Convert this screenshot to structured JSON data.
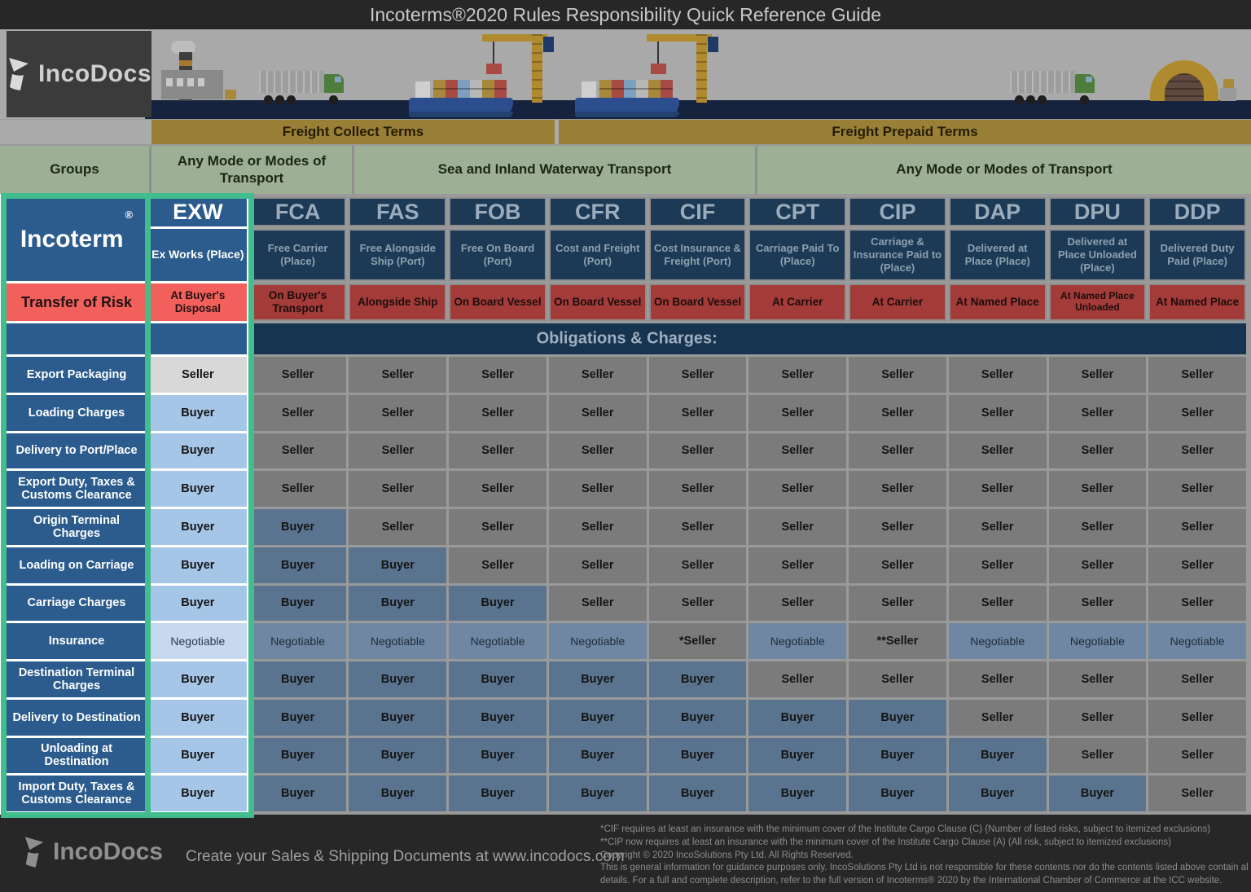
{
  "title": "Incoterms®2020 Rules Responsibility Quick Reference Guide",
  "brand": {
    "name": "IncoDocs",
    "tagline": "Create your Sales & Shipping Documents at www.incodocs.com"
  },
  "colors": {
    "highlight_green": "#42BE8E",
    "navy_bright": "#2B5C8D",
    "navy_dim": "#1C3A55",
    "red_bright": "#F2605C",
    "red_dim": "#A33B38",
    "seller_bright": "#D8D8D8",
    "seller_dim": "#7B7B7B",
    "buyer_bright": "#A6C6E8",
    "buyer_dim": "#5A7490",
    "negotiable_bright": "#C6D9EF",
    "negotiable_dim": "#6F87A2",
    "gold_bar": "#9A8036",
    "sage_group": "#9DB095"
  },
  "banner": {
    "icons": [
      "factory-icon",
      "cargo-truck-icon",
      "container-ship-icon",
      "crane-icon",
      "container-ship-icon",
      "crane-icon",
      "cargo-truck-icon",
      "warehouse-icon"
    ]
  },
  "freight": {
    "collect": "Freight Collect Terms",
    "prepaid": "Freight Prepaid Terms"
  },
  "groups": {
    "label": "Groups",
    "spans": [
      "Any Mode or Modes of Transport",
      "Sea and Inland Waterway Transport",
      "Any Mode or Modes of Transport"
    ]
  },
  "chart_data": {
    "type": "table",
    "title": "Incoterms®2020 Rules Responsibility Quick Reference Guide",
    "corner_label": "Incoterm",
    "corner_mark": "®",
    "risk_row_label": "Transfer of Risk",
    "obligations_header": "Obligations & Charges:",
    "highlighted_column": "EXW",
    "row_labels": [
      "Export Packaging",
      "Loading Charges",
      "Delivery to Port/Place",
      "Export Duty, Taxes & Customs Clearance",
      "Origin Terminal Charges",
      "Loading on Carriage",
      "Carriage Charges",
      "Insurance",
      "Destination Terminal Charges",
      "Delivery to Destination",
      "Unloading at Destination",
      "Import Duty, Taxes & Customs Clearance"
    ],
    "columns": [
      {
        "code": "EXW",
        "name": "Ex Works (Place)",
        "risk": "At Buyer's Disposal",
        "cells": [
          "Seller",
          "Buyer",
          "Buyer",
          "Buyer",
          "Buyer",
          "Buyer",
          "Buyer",
          "Negotiable",
          "Buyer",
          "Buyer",
          "Buyer",
          "Buyer"
        ]
      },
      {
        "code": "FCA",
        "name": "Free Carrier (Place)",
        "risk": "On Buyer's Transport",
        "cells": [
          "Seller",
          "Seller",
          "Seller",
          "Seller",
          "Buyer",
          "Buyer",
          "Buyer",
          "Negotiable",
          "Buyer",
          "Buyer",
          "Buyer",
          "Buyer"
        ]
      },
      {
        "code": "FAS",
        "name": "Free Alongside Ship (Port)",
        "risk": "Alongside Ship",
        "cells": [
          "Seller",
          "Seller",
          "Seller",
          "Seller",
          "Seller",
          "Buyer",
          "Buyer",
          "Negotiable",
          "Buyer",
          "Buyer",
          "Buyer",
          "Buyer"
        ]
      },
      {
        "code": "FOB",
        "name": "Free On Board (Port)",
        "risk": "On Board Vessel",
        "cells": [
          "Seller",
          "Seller",
          "Seller",
          "Seller",
          "Seller",
          "Seller",
          "Buyer",
          "Negotiable",
          "Buyer",
          "Buyer",
          "Buyer",
          "Buyer"
        ]
      },
      {
        "code": "CFR",
        "name": "Cost and Freight (Port)",
        "risk": "On Board Vessel",
        "cells": [
          "Seller",
          "Seller",
          "Seller",
          "Seller",
          "Seller",
          "Seller",
          "Seller",
          "Negotiable",
          "Buyer",
          "Buyer",
          "Buyer",
          "Buyer"
        ]
      },
      {
        "code": "CIF",
        "name": "Cost Insurance & Freight (Port)",
        "risk": "On Board Vessel",
        "cells": [
          "Seller",
          "Seller",
          "Seller",
          "Seller",
          "Seller",
          "Seller",
          "Seller",
          "*Seller",
          "Buyer",
          "Buyer",
          "Buyer",
          "Buyer"
        ]
      },
      {
        "code": "CPT",
        "name": "Carriage Paid To (Place)",
        "risk": "At Carrier",
        "cells": [
          "Seller",
          "Seller",
          "Seller",
          "Seller",
          "Seller",
          "Seller",
          "Seller",
          "Negotiable",
          "Seller",
          "Buyer",
          "Buyer",
          "Buyer"
        ]
      },
      {
        "code": "CIP",
        "name": "Carriage & Insurance Paid to (Place)",
        "risk": "At Carrier",
        "cells": [
          "Seller",
          "Seller",
          "Seller",
          "Seller",
          "Seller",
          "Seller",
          "Seller",
          "**Seller",
          "Seller",
          "Buyer",
          "Buyer",
          "Buyer"
        ]
      },
      {
        "code": "DAP",
        "name": "Delivered at Place (Place)",
        "risk": "At Named Place",
        "cells": [
          "Seller",
          "Seller",
          "Seller",
          "Seller",
          "Seller",
          "Seller",
          "Seller",
          "Negotiable",
          "Seller",
          "Seller",
          "Buyer",
          "Buyer"
        ]
      },
      {
        "code": "DPU",
        "name": "Delivered at Place Unloaded (Place)",
        "risk": "At Named Place Unloaded",
        "cells": [
          "Seller",
          "Seller",
          "Seller",
          "Seller",
          "Seller",
          "Seller",
          "Seller",
          "Negotiable",
          "Seller",
          "Seller",
          "Seller",
          "Buyer"
        ]
      },
      {
        "code": "DDP",
        "name": "Delivered Duty Paid (Place)",
        "risk": "At Named Place",
        "cells": [
          "Seller",
          "Seller",
          "Seller",
          "Seller",
          "Seller",
          "Seller",
          "Seller",
          "Negotiable",
          "Seller",
          "Seller",
          "Seller",
          "Seller"
        ]
      }
    ]
  },
  "footer": {
    "notes": [
      "*CIF requires at least an insurance with the minimum cover of the Institute Cargo Clause (C) (Number of listed risks, subject to itemized exclusions)",
      "**CIP now requires at least an insurance with the minimum cover of the Institute Cargo Clause (A) (All risk, subject to itemized exclusions)",
      "Copyright © 2020 IncoSolutions Pty Ltd. All Rights Reserved.",
      "This is general information for guidance purposes only.  IncoSolutions Pty Ltd is not responsible for these contents nor do the contents listed above contain all",
      "details.  For a full and complete description, refer to the full version of Incoterms® 2020 by the International Chamber of Commerce at the ICC website."
    ]
  }
}
